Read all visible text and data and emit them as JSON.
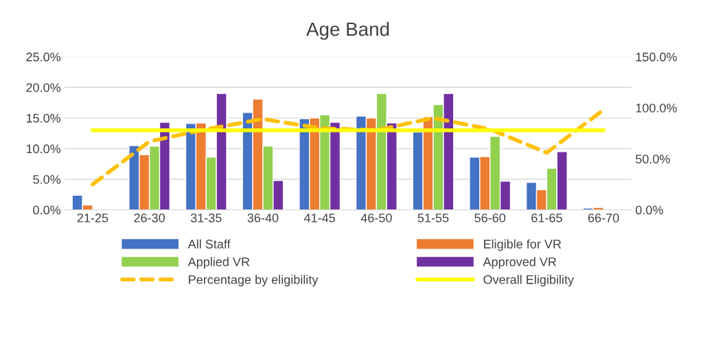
{
  "chart_data": {
    "type": "bar",
    "title": "Age Band",
    "categories": [
      "21-25",
      "26-30",
      "31-35",
      "36-40",
      "41-45",
      "46-50",
      "51-55",
      "56-60",
      "61-65",
      "66-70"
    ],
    "series": [
      {
        "name": "All Staff",
        "color": "#4472c4",
        "values": [
          2.4,
          10.5,
          14.1,
          15.9,
          14.9,
          15.3,
          12.7,
          8.6,
          4.5,
          0.3
        ]
      },
      {
        "name": "Eligible for VR",
        "color": "#ed7d31",
        "values": [
          0.8,
          9.0,
          14.2,
          18.1,
          15.0,
          15.0,
          15.2,
          8.7,
          3.3,
          0.4
        ]
      },
      {
        "name": "Applied VR",
        "color": "#92d050",
        "values": [
          null,
          10.4,
          8.6,
          10.4,
          15.5,
          19.0,
          17.2,
          12.0,
          6.8,
          null
        ]
      },
      {
        "name": "Approved VR",
        "color": "#7030a0",
        "values": [
          null,
          14.3,
          19.0,
          4.8,
          14.3,
          14.2,
          19.0,
          4.7,
          9.5,
          null
        ]
      },
      {
        "name": "Percentage by eligibility",
        "color": "#ffc000",
        "type": "line",
        "axis": "y2",
        "line_style": "dashed",
        "values": [
          25,
          67,
          79,
          89,
          80,
          78,
          90,
          79,
          56,
          98
        ]
      },
      {
        "name": "Overall Eligibility",
        "color": "#ffff00",
        "type": "line",
        "axis": "y2",
        "line_style": "solid",
        "values": [
          78,
          78,
          78,
          78,
          78,
          78,
          78,
          78,
          78,
          78
        ]
      }
    ],
    "ylim": [
      0,
      25
    ],
    "yticks": [
      {
        "value": 0,
        "label": "0.0%"
      },
      {
        "value": 5,
        "label": "5.0%"
      },
      {
        "value": 10,
        "label": "10.0%"
      },
      {
        "value": 15,
        "label": "15.0%"
      },
      {
        "value": 20,
        "label": "20.0%"
      },
      {
        "value": 25,
        "label": "25.0%"
      }
    ],
    "y2lim": [
      0,
      150
    ],
    "y2ticks": [
      {
        "value": 0,
        "label": "0.0%"
      },
      {
        "value": 50,
        "label": "50.0%"
      },
      {
        "value": 100,
        "label": "100.0%"
      },
      {
        "value": 150,
        "label": "150.0%"
      }
    ],
    "grid": "y",
    "legend": "bottom",
    "marker": "none"
  }
}
